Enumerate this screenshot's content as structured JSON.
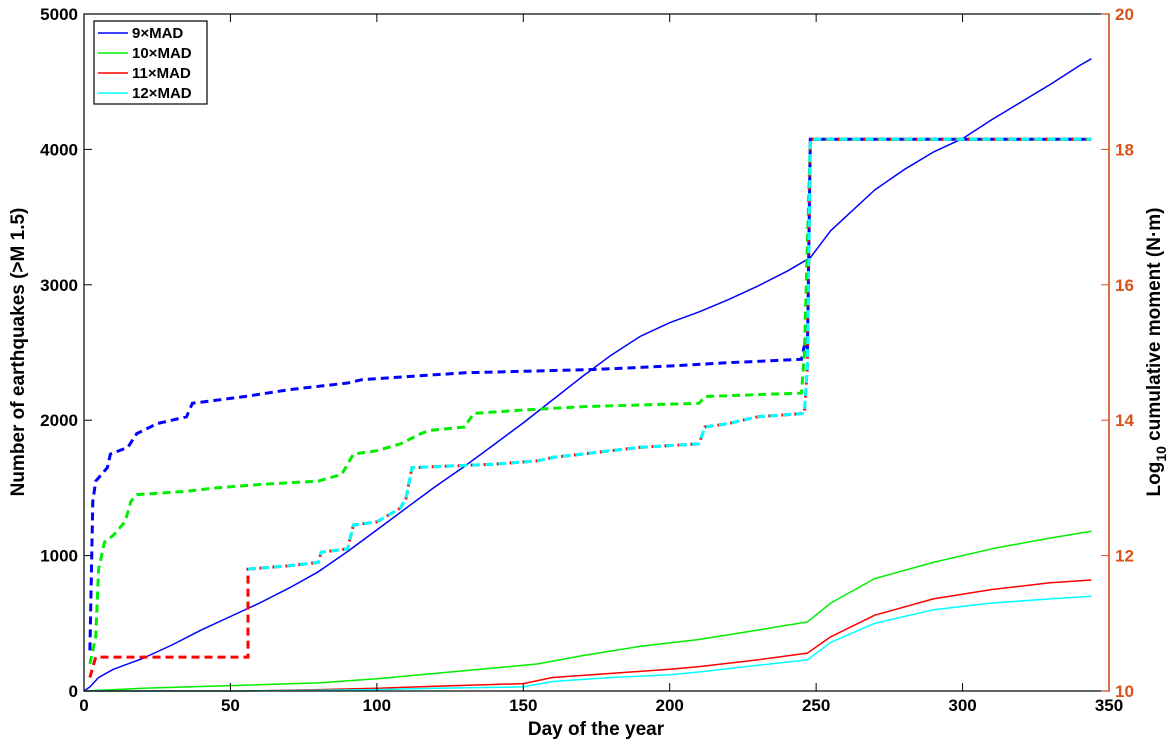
{
  "chart_data": {
    "type": "line",
    "xlabel": "Day of the year",
    "ylabel_left": "Number of earthquakes (>M 1.5)",
    "ylabel_right_parts": [
      "Log",
      "10",
      " cumulative moment (N·m)"
    ],
    "xlim": [
      0,
      350
    ],
    "ylim_left": [
      0,
      5000
    ],
    "ylim_right": [
      10,
      20
    ],
    "x_ticks": [
      "0",
      "50",
      "100",
      "150",
      "200",
      "250",
      "300",
      "350"
    ],
    "y_ticks_left": [
      "0",
      "1000",
      "2000",
      "3000",
      "4000",
      "5000"
    ],
    "y_ticks_right": [
      "10",
      "12",
      "14",
      "16",
      "18",
      "20"
    ],
    "legend_position": "top-left",
    "colors": {
      "right_axis": "#d95319"
    },
    "series": [
      {
        "name": "9×MAD",
        "color": "#0000ff",
        "count": [
          [
            0,
            0
          ],
          [
            2,
            30
          ],
          [
            5,
            100
          ],
          [
            10,
            160
          ],
          [
            20,
            240
          ],
          [
            30,
            340
          ],
          [
            40,
            450
          ],
          [
            50,
            550
          ],
          [
            60,
            650
          ],
          [
            70,
            760
          ],
          [
            80,
            880
          ],
          [
            90,
            1030
          ],
          [
            100,
            1190
          ],
          [
            110,
            1350
          ],
          [
            120,
            1510
          ],
          [
            130,
            1660
          ],
          [
            140,
            1820
          ],
          [
            150,
            1980
          ],
          [
            160,
            2150
          ],
          [
            170,
            2320
          ],
          [
            180,
            2480
          ],
          [
            190,
            2620
          ],
          [
            200,
            2720
          ],
          [
            210,
            2800
          ],
          [
            220,
            2890
          ],
          [
            230,
            2990
          ],
          [
            240,
            3100
          ],
          [
            248,
            3200
          ],
          [
            255,
            3400
          ],
          [
            260,
            3500
          ],
          [
            270,
            3700
          ],
          [
            280,
            3850
          ],
          [
            290,
            3980
          ],
          [
            300,
            4080
          ],
          [
            310,
            4220
          ],
          [
            320,
            4350
          ],
          [
            330,
            4480
          ],
          [
            340,
            4620
          ],
          [
            344,
            4670
          ]
        ],
        "moment": [
          [
            2,
            10.6
          ],
          [
            3,
            12.8
          ],
          [
            4,
            13.1
          ],
          [
            8,
            13.3
          ],
          [
            9,
            13.5
          ],
          [
            15,
            13.6
          ],
          [
            18,
            13.8
          ],
          [
            25,
            13.95
          ],
          [
            35,
            14.05
          ],
          [
            37,
            14.25
          ],
          [
            55,
            14.35
          ],
          [
            70,
            14.45
          ],
          [
            90,
            14.55
          ],
          [
            95,
            14.6
          ],
          [
            130,
            14.7
          ],
          [
            175,
            14.75
          ],
          [
            200,
            14.8
          ],
          [
            220,
            14.85
          ],
          [
            245,
            14.9
          ],
          [
            246,
            15.1
          ],
          [
            247,
            15.0
          ],
          [
            248,
            18.15
          ],
          [
            344,
            18.15
          ]
        ]
      },
      {
        "name": "10×MAD",
        "color": "#00ee00",
        "count": [
          [
            0,
            0
          ],
          [
            20,
            20
          ],
          [
            50,
            40
          ],
          [
            80,
            60
          ],
          [
            100,
            90
          ],
          [
            120,
            130
          ],
          [
            140,
            170
          ],
          [
            155,
            200
          ],
          [
            170,
            260
          ],
          [
            190,
            330
          ],
          [
            210,
            380
          ],
          [
            230,
            450
          ],
          [
            247,
            510
          ],
          [
            255,
            650
          ],
          [
            270,
            830
          ],
          [
            290,
            950
          ],
          [
            310,
            1050
          ],
          [
            330,
            1130
          ],
          [
            344,
            1180
          ]
        ],
        "moment": [
          [
            2,
            10.4
          ],
          [
            4,
            10.8
          ],
          [
            5,
            11.8
          ],
          [
            7,
            12.2
          ],
          [
            10,
            12.3
          ],
          [
            14,
            12.5
          ],
          [
            16,
            12.8
          ],
          [
            18,
            12.9
          ],
          [
            35,
            12.95
          ],
          [
            45,
            13.0
          ],
          [
            60,
            13.05
          ],
          [
            80,
            13.1
          ],
          [
            88,
            13.2
          ],
          [
            92,
            13.5
          ],
          [
            100,
            13.55
          ],
          [
            108,
            13.65
          ],
          [
            115,
            13.8
          ],
          [
            118,
            13.85
          ],
          [
            130,
            13.9
          ],
          [
            133,
            14.1
          ],
          [
            150,
            14.15
          ],
          [
            170,
            14.2
          ],
          [
            210,
            14.25
          ],
          [
            212,
            14.35
          ],
          [
            245,
            14.4
          ],
          [
            246,
            15.0
          ],
          [
            248,
            18.15
          ],
          [
            344,
            18.15
          ]
        ]
      },
      {
        "name": "11×MAD",
        "color": "#ff0000",
        "count": [
          [
            0,
            0
          ],
          [
            55,
            0
          ],
          [
            80,
            10
          ],
          [
            100,
            20
          ],
          [
            120,
            35
          ],
          [
            150,
            55
          ],
          [
            160,
            100
          ],
          [
            180,
            130
          ],
          [
            200,
            160
          ],
          [
            210,
            180
          ],
          [
            230,
            230
          ],
          [
            247,
            280
          ],
          [
            255,
            400
          ],
          [
            270,
            560
          ],
          [
            290,
            680
          ],
          [
            310,
            750
          ],
          [
            330,
            800
          ],
          [
            344,
            820
          ]
        ],
        "moment": [
          [
            2,
            10.2
          ],
          [
            4,
            10.5
          ],
          [
            56,
            10.5
          ],
          [
            56,
            11.8
          ],
          [
            70,
            11.85
          ],
          [
            80,
            11.9
          ],
          [
            81,
            12.05
          ],
          [
            90,
            12.1
          ],
          [
            92,
            12.45
          ],
          [
            100,
            12.5
          ],
          [
            104,
            12.6
          ],
          [
            108,
            12.7
          ],
          [
            110,
            12.85
          ],
          [
            112,
            13.3
          ],
          [
            140,
            13.35
          ],
          [
            155,
            13.4
          ],
          [
            160,
            13.45
          ],
          [
            170,
            13.5
          ],
          [
            180,
            13.55
          ],
          [
            190,
            13.6
          ],
          [
            210,
            13.65
          ],
          [
            212,
            13.9
          ],
          [
            220,
            13.95
          ],
          [
            225,
            14.0
          ],
          [
            230,
            14.05
          ],
          [
            246,
            14.1
          ],
          [
            247,
            14.8
          ],
          [
            248,
            18.15
          ],
          [
            344,
            18.15
          ]
        ]
      },
      {
        "name": "12×MAD",
        "color": "#00ffff",
        "count": [
          [
            0,
            0
          ],
          [
            55,
            0
          ],
          [
            80,
            5
          ],
          [
            100,
            10
          ],
          [
            120,
            20
          ],
          [
            150,
            30
          ],
          [
            160,
            70
          ],
          [
            180,
            100
          ],
          [
            200,
            120
          ],
          [
            210,
            140
          ],
          [
            230,
            190
          ],
          [
            247,
            230
          ],
          [
            255,
            360
          ],
          [
            270,
            500
          ],
          [
            290,
            600
          ],
          [
            310,
            650
          ],
          [
            330,
            680
          ],
          [
            344,
            700
          ]
        ],
        "moment": [
          [
            56,
            11.8
          ],
          [
            70,
            11.85
          ],
          [
            80,
            11.9
          ],
          [
            81,
            12.05
          ],
          [
            90,
            12.1
          ],
          [
            92,
            12.45
          ],
          [
            100,
            12.5
          ],
          [
            104,
            12.6
          ],
          [
            108,
            12.7
          ],
          [
            110,
            12.85
          ],
          [
            112,
            13.3
          ],
          [
            140,
            13.35
          ],
          [
            155,
            13.4
          ],
          [
            160,
            13.45
          ],
          [
            170,
            13.5
          ],
          [
            180,
            13.55
          ],
          [
            190,
            13.6
          ],
          [
            210,
            13.65
          ],
          [
            212,
            13.9
          ],
          [
            220,
            13.95
          ],
          [
            225,
            14.0
          ],
          [
            230,
            14.05
          ],
          [
            246,
            14.1
          ],
          [
            247,
            14.8
          ],
          [
            248,
            18.15
          ],
          [
            344,
            18.15
          ]
        ]
      }
    ]
  }
}
